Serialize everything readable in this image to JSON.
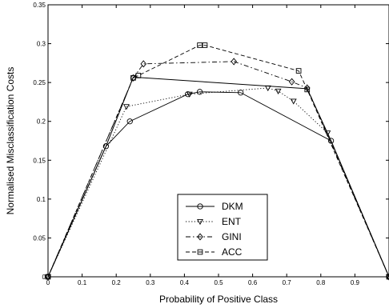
{
  "chart_data": {
    "type": "line",
    "xlabel": "Probability of Positive Class",
    "ylabel": "Normalised Misclassification Costs",
    "xlim": [
      0,
      1
    ],
    "ylim": [
      0,
      0.35
    ],
    "xticks": [
      0,
      0.1,
      0.2,
      0.3,
      0.4,
      0.5,
      0.6,
      0.7,
      0.8,
      0.9
    ],
    "yticks": [
      0,
      0.05,
      0.1,
      0.15,
      0.2,
      0.25,
      0.3,
      0.35
    ],
    "xtick_labels": [
      "0",
      "0.1",
      "0.2",
      "0.3",
      "0.4",
      "0.5",
      "0.6",
      "0.7",
      "0.8",
      "0.9"
    ],
    "ytick_labels": [
      "0",
      "0.05",
      "0.1",
      "0.15",
      "0.2",
      "0.25",
      "0.3",
      "0.35"
    ],
    "grid": false,
    "legend_placement": "bottom-center",
    "series": [
      {
        "name": "DKM",
        "marker": "circle",
        "dash": "solid",
        "points": [
          [
            0,
            0
          ],
          [
            0.17,
            0.168
          ],
          [
            0.24,
            0.2
          ],
          [
            0.41,
            0.235
          ],
          [
            0.445,
            0.238
          ],
          [
            0.565,
            0.237
          ],
          [
            0.83,
            0.175
          ],
          [
            1.0,
            0
          ]
        ]
      },
      {
        "name": "ENT",
        "marker": "triangle-down",
        "dash": "dotted",
        "points": [
          [
            0,
            0
          ],
          [
            0.23,
            0.219
          ],
          [
            0.415,
            0.235
          ],
          [
            0.645,
            0.243
          ],
          [
            0.675,
            0.239
          ],
          [
            0.72,
            0.226
          ],
          [
            0.82,
            0.185
          ],
          [
            1.0,
            0
          ]
        ]
      },
      {
        "name": "GINI",
        "marker": "diamond",
        "dash": "dashdot",
        "points": [
          [
            0,
            0
          ],
          [
            0.25,
            0.256
          ],
          [
            0.28,
            0.274
          ],
          [
            0.545,
            0.277
          ],
          [
            0.715,
            0.251
          ],
          [
            0.76,
            0.243
          ],
          [
            1.0,
            0
          ]
        ]
      },
      {
        "name": "ACC",
        "marker": "square",
        "dash": "dashed",
        "points": [
          [
            0,
            0
          ],
          [
            0.25,
            0.256
          ],
          [
            0.265,
            0.259
          ],
          [
            0.445,
            0.298
          ],
          [
            0.46,
            0.298
          ],
          [
            0.735,
            0.265
          ],
          [
            0.76,
            0.241
          ],
          [
            1.0,
            0
          ]
        ]
      }
    ],
    "envelope": {
      "points": [
        [
          0,
          0
        ],
        [
          0.17,
          0.168
        ],
        [
          0.25,
          0.257
        ],
        [
          0.76,
          0.242
        ],
        [
          0.83,
          0.175
        ],
        [
          1.0,
          0
        ]
      ]
    }
  }
}
